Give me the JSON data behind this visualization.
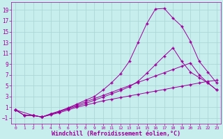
{
  "bg_color": "#c8eded",
  "grid_color": "#a8d4d4",
  "line_color": "#990099",
  "xlabel": "Windchill (Refroidissement éolien,°C)",
  "xlim": [
    -0.5,
    23.5
  ],
  "ylim": [
    -2.0,
    20.5
  ],
  "yticks": [
    -1,
    1,
    3,
    5,
    7,
    9,
    11,
    13,
    15,
    17,
    19
  ],
  "xticks": [
    0,
    1,
    2,
    3,
    4,
    5,
    6,
    7,
    8,
    9,
    10,
    11,
    12,
    13,
    14,
    15,
    16,
    17,
    18,
    19,
    20,
    21,
    22,
    23
  ],
  "line1_x": [
    0,
    1,
    2,
    3,
    4,
    5,
    6,
    7,
    8,
    9,
    10,
    11,
    12,
    13,
    14,
    15,
    16,
    17,
    18,
    19,
    20,
    21,
    22,
    23
  ],
  "line1_y": [
    0.5,
    -0.5,
    -0.5,
    -0.8,
    -0.4,
    0.0,
    0.5,
    1.0,
    1.4,
    1.8,
    2.2,
    2.5,
    2.8,
    3.1,
    3.4,
    3.7,
    4.0,
    4.3,
    4.6,
    4.9,
    5.2,
    5.5,
    5.8,
    6.0
  ],
  "line2_x": [
    0,
    1,
    2,
    3,
    4,
    5,
    6,
    7,
    8,
    9,
    10,
    11,
    12,
    13,
    14,
    15,
    16,
    17,
    18,
    19,
    20,
    21,
    22,
    23
  ],
  "line2_y": [
    0.5,
    -0.5,
    -0.5,
    -0.8,
    -0.2,
    0.3,
    0.9,
    1.6,
    2.3,
    3.0,
    4.2,
    5.6,
    7.2,
    9.5,
    13.0,
    16.5,
    19.2,
    19.3,
    17.5,
    16.0,
    13.2,
    9.5,
    7.5,
    5.5
  ],
  "line3_x": [
    0,
    2,
    3,
    4,
    5,
    6,
    7,
    8,
    9,
    10,
    11,
    12,
    13,
    14,
    15,
    16,
    17,
    18,
    19,
    20,
    21,
    22,
    23
  ],
  "line3_y": [
    0.5,
    -0.5,
    -0.8,
    -0.3,
    0.2,
    0.7,
    1.2,
    1.7,
    2.3,
    2.9,
    3.5,
    4.1,
    4.8,
    5.8,
    7.3,
    8.9,
    10.5,
    12.0,
    9.5,
    7.5,
    6.5,
    5.5,
    4.2
  ],
  "line4_x": [
    0,
    1,
    2,
    3,
    4,
    5,
    6,
    7,
    8,
    9,
    10,
    11,
    12,
    13,
    14,
    15,
    16,
    17,
    18,
    19,
    20,
    21,
    22,
    23
  ],
  "line4_y": [
    0.5,
    -0.5,
    -0.5,
    -0.8,
    -0.3,
    0.2,
    0.8,
    1.4,
    2.0,
    2.6,
    3.2,
    3.8,
    4.4,
    5.0,
    5.6,
    6.2,
    6.8,
    7.4,
    8.0,
    8.6,
    9.2,
    7.0,
    5.5,
    4.2
  ]
}
